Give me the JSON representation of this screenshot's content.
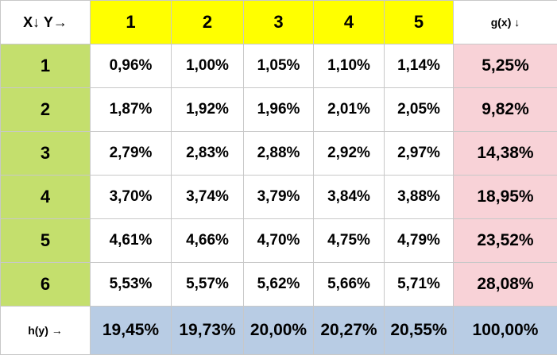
{
  "table": {
    "corner_label": "X↓ Y→",
    "y_headers": [
      "1",
      "2",
      "3",
      "4",
      "5"
    ],
    "gx_header": "g(x) ↓",
    "rows": [
      {
        "x": "1",
        "cells": [
          "0,96%",
          "1,00%",
          "1,05%",
          "1,10%",
          "1,14%"
        ],
        "gx": "5,25%"
      },
      {
        "x": "2",
        "cells": [
          "1,87%",
          "1,92%",
          "1,96%",
          "2,01%",
          "2,05%"
        ],
        "gx": "9,82%"
      },
      {
        "x": "3",
        "cells": [
          "2,79%",
          "2,83%",
          "2,88%",
          "2,92%",
          "2,97%"
        ],
        "gx": "14,38%"
      },
      {
        "x": "4",
        "cells": [
          "3,70%",
          "3,74%",
          "3,79%",
          "3,84%",
          "3,88%"
        ],
        "gx": "18,95%"
      },
      {
        "x": "5",
        "cells": [
          "4,61%",
          "4,66%",
          "4,70%",
          "4,75%",
          "4,79%"
        ],
        "gx": "23,52%"
      },
      {
        "x": "6",
        "cells": [
          "5,53%",
          "5,57%",
          "5,62%",
          "5,66%",
          "5,71%"
        ],
        "gx": "28,08%"
      }
    ],
    "hy_label": "h(y) →",
    "hy_values": [
      "19,45%",
      "19,73%",
      "20,00%",
      "20,27%",
      "20,55%"
    ],
    "total": "100,00%"
  },
  "colors": {
    "y_header_bg": "#ffff00",
    "x_header_bg": "#c4df6d",
    "gx_bg": "#f8d2d7",
    "hy_bg": "#b8cce4",
    "grid_line": "#c8c8c8"
  }
}
